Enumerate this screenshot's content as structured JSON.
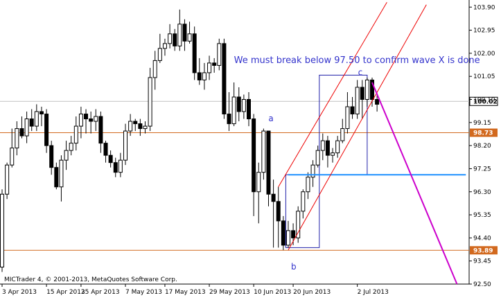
{
  "chart_data": {
    "type": "candlestick",
    "y_range": [
      92.5,
      104.05
    ],
    "y_ticks": [
      "103.90",
      "102.95",
      "102.00",
      "101.05",
      "100.10",
      "99.15",
      "98.20",
      "97.25",
      "96.30",
      "95.35",
      "94.40",
      "93.45",
      "92.50"
    ],
    "x_ticks": [
      "3 Apr 2013",
      "15 Apr 2013",
      "25 Apr 2013",
      "7 May 2013",
      "17 May 2013",
      "29 May 2013",
      "10 Jun 2013",
      "20 Jun 2013",
      "2 Jul 2013"
    ],
    "colors": {
      "up": "#ffffff",
      "down": "#000000",
      "wick": "#000000",
      "hline": "#d2691e",
      "channel": "#ee0000",
      "projection": "#cc00cc",
      "box": "#2222aa",
      "support": "#1e90ff",
      "text": "#3333cc"
    },
    "candles": [
      [
        93.2,
        96.2,
        93.0,
        96.4
      ],
      [
        96.2,
        97.4,
        96.0,
        97.5
      ],
      [
        97.4,
        98.1,
        97.3,
        98.9
      ],
      [
        98.1,
        98.9,
        97.8,
        99.2
      ],
      [
        98.9,
        98.6,
        98.5,
        99.4
      ],
      [
        98.6,
        99.3,
        98.3,
        99.6
      ],
      [
        99.3,
        99.0,
        98.8,
        99.7
      ],
      [
        99.0,
        99.6,
        98.8,
        99.9
      ],
      [
        99.6,
        99.5,
        99.0,
        99.8
      ],
      [
        99.5,
        98.2,
        97.9,
        99.7
      ],
      [
        98.2,
        97.3,
        97.0,
        98.4
      ],
      [
        97.3,
        96.5,
        96.4,
        97.5
      ],
      [
        96.5,
        97.6,
        95.9,
        97.8
      ],
      [
        97.6,
        98.0,
        97.2,
        98.4
      ],
      [
        98.0,
        98.3,
        97.8,
        98.6
      ],
      [
        98.3,
        99.0,
        98.0,
        99.4
      ],
      [
        99.0,
        99.5,
        98.5,
        99.8
      ],
      [
        99.5,
        99.3,
        98.7,
        99.7
      ],
      [
        99.3,
        99.2,
        98.7,
        99.6
      ],
      [
        99.2,
        99.4,
        98.8,
        99.7
      ],
      [
        99.4,
        98.3,
        97.9,
        99.6
      ],
      [
        98.3,
        97.8,
        97.5,
        98.4
      ],
      [
        97.8,
        97.5,
        97.3,
        98.0
      ],
      [
        97.5,
        97.1,
        96.9,
        97.7
      ],
      [
        97.1,
        97.6,
        96.9,
        97.9
      ],
      [
        97.6,
        98.8,
        97.4,
        99.1
      ],
      [
        98.8,
        99.2,
        98.6,
        99.5
      ],
      [
        99.2,
        99.1,
        98.8,
        99.3
      ],
      [
        99.1,
        98.9,
        98.6,
        99.3
      ],
      [
        98.9,
        99.0,
        98.7,
        99.2
      ],
      [
        99.0,
        101.0,
        98.8,
        101.4
      ],
      [
        101.0,
        101.7,
        100.5,
        102.1
      ],
      [
        101.7,
        102.2,
        101.6,
        102.8
      ],
      [
        102.2,
        102.4,
        101.9,
        102.6
      ],
      [
        102.4,
        102.8,
        102.2,
        103.2
      ],
      [
        102.8,
        102.3,
        102.1,
        103.0
      ],
      [
        102.3,
        103.2,
        102.1,
        103.8
      ],
      [
        103.2,
        102.5,
        102.1,
        103.4
      ],
      [
        102.5,
        102.8,
        102.4,
        103.3
      ],
      [
        102.8,
        101.2,
        100.9,
        103.1
      ],
      [
        101.2,
        100.9,
        100.7,
        101.8
      ],
      [
        100.9,
        101.2,
        100.5,
        101.6
      ],
      [
        101.2,
        101.6,
        100.9,
        101.9
      ],
      [
        101.6,
        101.5,
        101.2,
        101.8
      ],
      [
        101.5,
        102.4,
        101.3,
        102.6
      ],
      [
        102.4,
        99.5,
        99.3,
        102.6
      ],
      [
        99.5,
        99.1,
        98.8,
        100.4
      ],
      [
        99.1,
        100.2,
        99.0,
        100.8
      ],
      [
        100.2,
        99.6,
        99.2,
        100.6
      ],
      [
        99.6,
        100.1,
        99.3,
        100.3
      ],
      [
        100.1,
        99.3,
        99.0,
        100.4
      ],
      [
        99.3,
        96.3,
        95.3,
        99.5
      ],
      [
        96.3,
        97.1,
        95.0,
        97.5
      ],
      [
        97.1,
        98.8,
        96.8,
        98.9
      ],
      [
        98.8,
        96.2,
        95.7,
        98.8
      ],
      [
        96.2,
        95.9,
        94.0,
        96.8
      ],
      [
        95.9,
        95.1,
        94.0,
        96.5
      ],
      [
        95.1,
        94.1,
        93.9,
        95.3
      ],
      [
        94.1,
        94.7,
        94.0,
        95.1
      ],
      [
        94.7,
        94.4,
        94.1,
        95.0
      ],
      [
        94.4,
        95.5,
        94.2,
        95.7
      ],
      [
        95.5,
        96.3,
        95.2,
        96.4
      ],
      [
        96.3,
        96.9,
        96.0,
        97.1
      ],
      [
        96.9,
        97.4,
        96.5,
        97.6
      ],
      [
        97.4,
        98.0,
        97.3,
        98.2
      ],
      [
        98.0,
        98.4,
        97.6,
        98.7
      ],
      [
        98.4,
        97.8,
        97.3,
        98.6
      ],
      [
        97.8,
        97.9,
        97.5,
        98.1
      ],
      [
        97.9,
        98.4,
        97.7,
        98.6
      ],
      [
        98.4,
        98.9,
        98.3,
        99.3
      ],
      [
        98.9,
        99.8,
        98.7,
        100.4
      ],
      [
        99.8,
        99.5,
        99.3,
        100.2
      ],
      [
        99.5,
        100.6,
        99.3,
        100.9
      ],
      [
        100.6,
        100.1,
        99.3,
        100.9
      ],
      [
        100.1,
        100.9,
        99.8,
        101.0
      ],
      [
        100.9,
        100.1,
        99.8,
        101.0
      ],
      [
        100.1,
        99.9,
        99.6,
        100.3
      ]
    ],
    "current_price": "100.02",
    "hlines": [
      {
        "value": 98.73,
        "label": "98.73"
      },
      {
        "value": 93.89,
        "label": "93.89"
      }
    ],
    "support_line": {
      "from_candle": 58,
      "to_candle": 94,
      "value": 97.0
    },
    "channel": {
      "lower": {
        "from": [
          58,
          93.9
        ],
        "to": [
          86,
          104.0
        ]
      },
      "upper": {
        "from": [
          56,
          96.5
        ],
        "to": [
          78,
          104.1
        ]
      }
    },
    "projection": {
      "from": [
        75,
        100.8
      ],
      "to": [
        92.2,
        92.5
      ]
    },
    "boxes": [
      {
        "from_candle": 57.5,
        "to_candle": 64.3,
        "low": 94.0,
        "high": 97.0
      },
      {
        "from_candle": 64.3,
        "to_candle": 74.0,
        "low": 97.0,
        "high": 101.1
      }
    ],
    "annotations": [
      {
        "text": "We must break below 97.50 to confirm wave X is done",
        "candle": 47,
        "value": 101.6
      },
      {
        "text": "a",
        "candle": 54.5,
        "value": 99.2
      },
      {
        "text": "b",
        "candle": 59.1,
        "value": 93.1
      },
      {
        "text": "c",
        "candle": 72.6,
        "value": 101.1
      }
    ],
    "copyright": "MICTrader 4, © 2001-2013, MetaQuotes Software Corp."
  }
}
